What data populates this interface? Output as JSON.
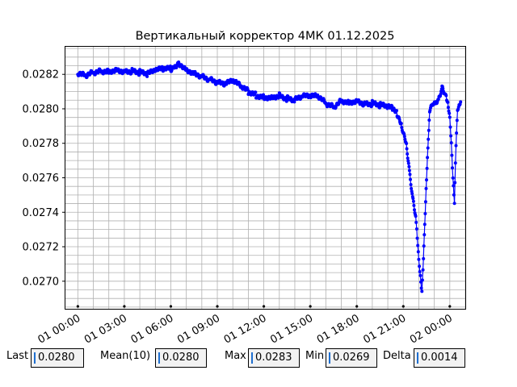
{
  "chart_data": {
    "type": "line",
    "title": "Вертикальный корректор 4МК 01.12.2025",
    "xlabel": "",
    "ylabel": "",
    "x_range_hours": [
      -0.8,
      25.0
    ],
    "ylim": [
      0.02684,
      0.02836
    ],
    "x_ticks": [
      {
        "hour": 0,
        "label": "01 00:00"
      },
      {
        "hour": 3,
        "label": "01 03:00"
      },
      {
        "hour": 6,
        "label": "01 06:00"
      },
      {
        "hour": 9,
        "label": "01 09:00"
      },
      {
        "hour": 12,
        "label": "01 12:00"
      },
      {
        "hour": 15,
        "label": "01 15:00"
      },
      {
        "hour": 18,
        "label": "01 18:00"
      },
      {
        "hour": 21,
        "label": "01 21:00"
      },
      {
        "hour": 24,
        "label": "02 00:00"
      }
    ],
    "y_ticks": [
      "0.0270",
      "0.0272",
      "0.0274",
      "0.0276",
      "0.0278",
      "0.0280",
      "0.0282"
    ],
    "grid": true,
    "series": [
      {
        "color": "#0000ff",
        "x": [
          0.0,
          0.5,
          1.0,
          1.5,
          2.0,
          2.5,
          3.0,
          3.5,
          4.0,
          4.5,
          5.0,
          5.5,
          6.0,
          6.3,
          6.5,
          7.0,
          7.5,
          8.0,
          8.5,
          9.0,
          9.5,
          10.0,
          10.5,
          11.0,
          11.5,
          12.0,
          12.5,
          13.0,
          13.5,
          14.0,
          14.5,
          15.0,
          15.5,
          16.0,
          16.5,
          17.0,
          17.5,
          18.0,
          18.5,
          19.0,
          19.5,
          20.0,
          20.3,
          20.6,
          20.9,
          21.2,
          21.4,
          21.6,
          21.8,
          21.9,
          22.0,
          22.1,
          22.2,
          22.3,
          22.5,
          22.7,
          22.9,
          23.1,
          23.3,
          23.5,
          23.7,
          23.8,
          23.9,
          24.0,
          24.1,
          24.2,
          24.3,
          24.4,
          24.5,
          24.6,
          24.7
        ],
        "y": [
          0.0282,
          0.02819,
          0.02821,
          0.02822,
          0.02822,
          0.02823,
          0.02822,
          0.02822,
          0.02821,
          0.0282,
          0.02822,
          0.02823,
          0.02823,
          0.02825,
          0.02827,
          0.02823,
          0.02821,
          0.02819,
          0.02817,
          0.02815,
          0.02814,
          0.02816,
          0.02813,
          0.0281,
          0.02808,
          0.02807,
          0.02807,
          0.02808,
          0.02806,
          0.02805,
          0.02807,
          0.02807,
          0.02807,
          0.02803,
          0.02801,
          0.02805,
          0.02804,
          0.02805,
          0.02803,
          0.02803,
          0.02802,
          0.02801,
          0.028,
          0.02797,
          0.0279,
          0.0278,
          0.02764,
          0.02749,
          0.02738,
          0.02725,
          0.02712,
          0.02702,
          0.02693,
          0.02713,
          0.0276,
          0.028,
          0.02804,
          0.02804,
          0.02806,
          0.02812,
          0.02808,
          0.02805,
          0.02801,
          0.02795,
          0.0278,
          0.0276,
          0.02746,
          0.0278,
          0.028,
          0.02802,
          0.02804
        ]
      }
    ]
  },
  "stats": {
    "last_label": "Last",
    "last_value": "0.0280",
    "mean_label": "Mean(10)",
    "mean_value": "0.0280",
    "max_label": "Max",
    "max_value": "0.0283",
    "min_label": "Min",
    "min_value": "0.0269",
    "delta_label": "Delta",
    "delta_value": "0.0014"
  }
}
